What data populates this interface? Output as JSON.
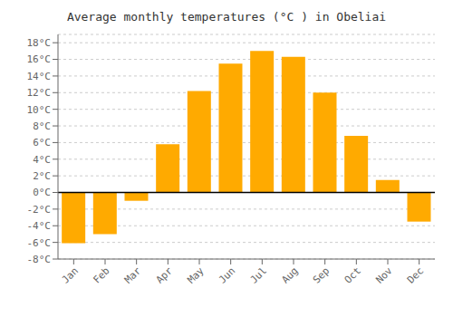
{
  "chart_data": {
    "type": "bar",
    "title": "Average monthly temperatures (°C ) in Obeliai",
    "categories": [
      "Jan",
      "Feb",
      "Mar",
      "Apr",
      "May",
      "Jun",
      "Jul",
      "Aug",
      "Sep",
      "Oct",
      "Nov",
      "Dec"
    ],
    "values": [
      -6.1,
      -5.0,
      -1.0,
      5.8,
      12.2,
      15.5,
      17.0,
      16.3,
      12.0,
      6.8,
      1.5,
      -3.5
    ],
    "color": "#FFAA00",
    "ylim": [
      -8,
      19
    ],
    "yticks": [
      {
        "value": -8,
        "label": "-8°C"
      },
      {
        "value": -6,
        "label": "-6°C"
      },
      {
        "value": -4,
        "label": "-4°C"
      },
      {
        "value": -2,
        "label": "-2°C"
      },
      {
        "value": 0,
        "label": "0°C"
      },
      {
        "value": 2,
        "label": "2°C"
      },
      {
        "value": 4,
        "label": "4°C"
      },
      {
        "value": 6,
        "label": "6°C"
      },
      {
        "value": 8,
        "label": "8°C"
      },
      {
        "value": 10,
        "label": "10°C"
      },
      {
        "value": 12,
        "label": "12°C"
      },
      {
        "value": 14,
        "label": "14°C"
      },
      {
        "value": 16,
        "label": "16°C"
      },
      {
        "value": 18,
        "label": "18°C"
      }
    ],
    "grid": true
  }
}
